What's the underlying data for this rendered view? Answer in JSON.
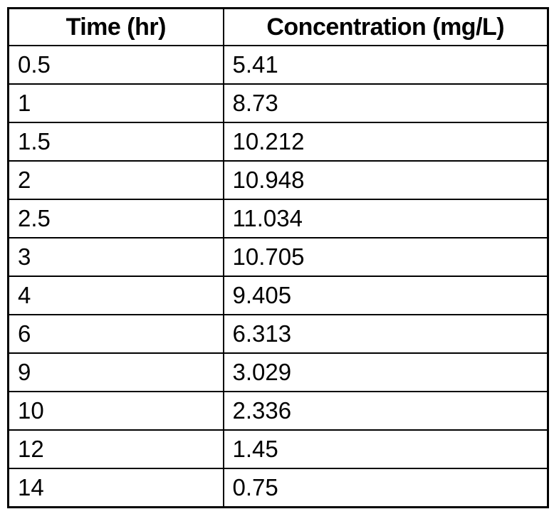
{
  "table": {
    "columns": [
      "Time (hr)",
      "Concentration (mg/L)"
    ],
    "rows": [
      [
        "0.5",
        "5.41"
      ],
      [
        "1",
        "8.73"
      ],
      [
        "1.5",
        "10.212"
      ],
      [
        "2",
        "10.948"
      ],
      [
        "2.5",
        "11.034"
      ],
      [
        "3",
        "10.705"
      ],
      [
        "4",
        "9.405"
      ],
      [
        "6",
        "6.313"
      ],
      [
        "9",
        "3.029"
      ],
      [
        "10",
        "2.336"
      ],
      [
        "12",
        "1.45"
      ],
      [
        "14",
        "0.75"
      ]
    ]
  },
  "chart_data": {
    "type": "table",
    "title": "",
    "columns": [
      "Time (hr)",
      "Concentration (mg/L)"
    ],
    "xlabel": "Time (hr)",
    "ylabel": "Concentration (mg/L)",
    "x": [
      0.5,
      1,
      1.5,
      2,
      2.5,
      3,
      4,
      6,
      9,
      10,
      12,
      14
    ],
    "y": [
      5.41,
      8.73,
      10.212,
      10.948,
      11.034,
      10.705,
      9.405,
      6.313,
      3.029,
      2.336,
      1.45,
      0.75
    ]
  },
  "colors": {
    "border": "#000000",
    "text": "#000000",
    "background": "#ffffff"
  }
}
